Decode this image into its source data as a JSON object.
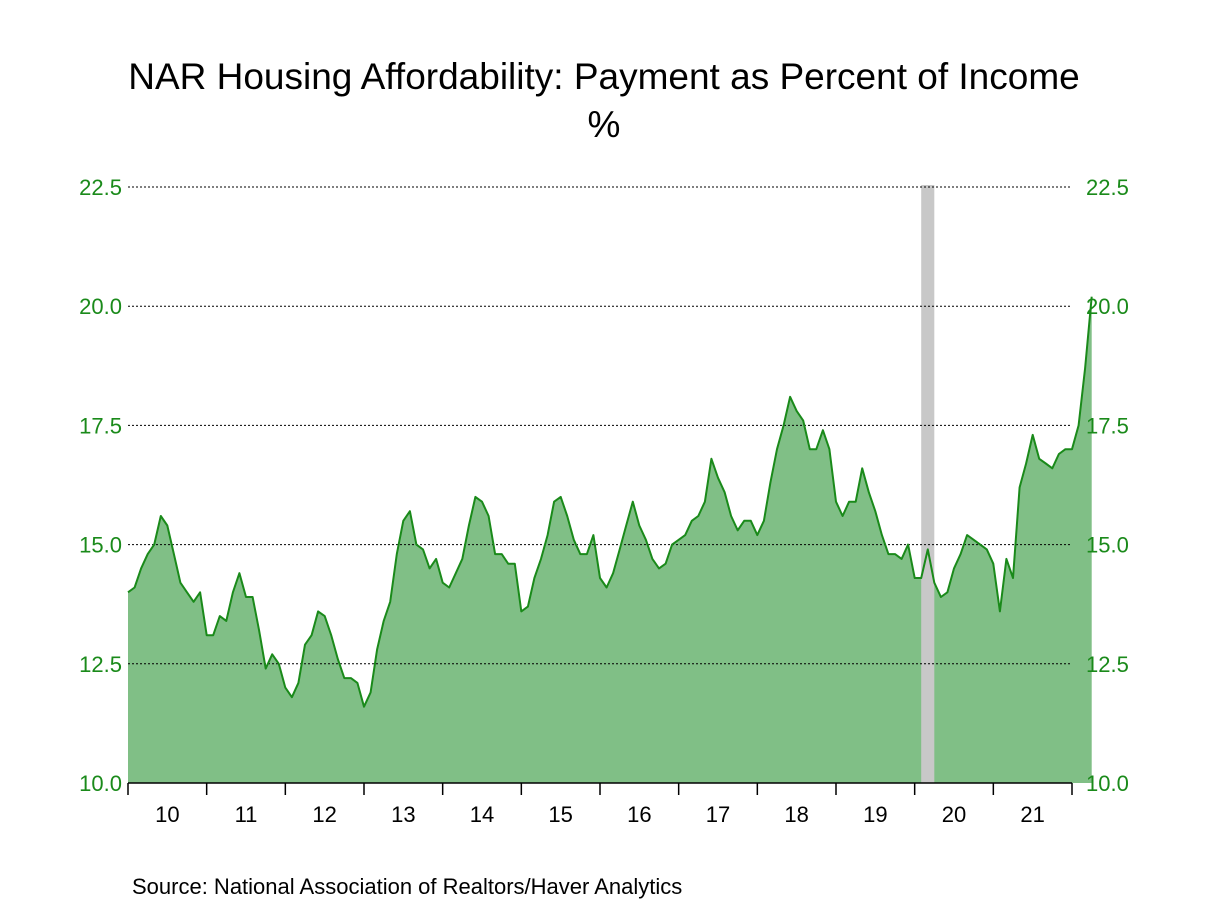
{
  "chart_data": {
    "type": "area",
    "title": "NAR Housing Affordability: Payment as Percent of Income",
    "subtitle": "%",
    "source": "Source:  National Association of Realtors/Haver Analytics",
    "ylim": [
      10.0,
      22.5
    ],
    "yticks": [
      "10.0",
      "12.5",
      "15.0",
      "17.5",
      "20.0",
      "22.5"
    ],
    "x_tick_labels": [
      "10",
      "11",
      "12",
      "13",
      "14",
      "15",
      "16",
      "17",
      "18",
      "19",
      "20",
      "21"
    ],
    "x_start_year": 2010,
    "x_end_year": 2022,
    "grid": "horizontal dotted",
    "axes": "left and right",
    "colors": {
      "fill": "#80bf86",
      "line": "#1a8a1a",
      "axis_text": "#1a8a1a",
      "recession": "#c8c8c8"
    },
    "recession_shading": [
      {
        "start": "2020-02",
        "end": "2020-04"
      }
    ],
    "series": [
      {
        "dates": [
          "2010-01",
          "2010-02",
          "2010-03",
          "2010-04",
          "2010-05",
          "2010-06",
          "2010-07",
          "2010-08",
          "2010-09",
          "2010-10",
          "2010-11",
          "2010-12",
          "2011-01",
          "2011-02",
          "2011-03",
          "2011-04",
          "2011-05",
          "2011-06",
          "2011-07",
          "2011-08",
          "2011-09",
          "2011-10",
          "2011-11",
          "2011-12",
          "2012-01",
          "2012-02",
          "2012-03",
          "2012-04",
          "2012-05",
          "2012-06",
          "2012-07",
          "2012-08",
          "2012-09",
          "2012-10",
          "2012-11",
          "2012-12",
          "2013-01",
          "2013-02",
          "2013-03",
          "2013-04",
          "2013-05",
          "2013-06",
          "2013-07",
          "2013-08",
          "2013-09",
          "2013-10",
          "2013-11",
          "2013-12",
          "2014-01",
          "2014-02",
          "2014-03",
          "2014-04",
          "2014-05",
          "2014-06",
          "2014-07",
          "2014-08",
          "2014-09",
          "2014-10",
          "2014-11",
          "2014-12",
          "2015-01",
          "2015-02",
          "2015-03",
          "2015-04",
          "2015-05",
          "2015-06",
          "2015-07",
          "2015-08",
          "2015-09",
          "2015-10",
          "2015-11",
          "2015-12",
          "2016-01",
          "2016-02",
          "2016-03",
          "2016-04",
          "2016-05",
          "2016-06",
          "2016-07",
          "2016-08",
          "2016-09",
          "2016-10",
          "2016-11",
          "2016-12",
          "2017-01",
          "2017-02",
          "2017-03",
          "2017-04",
          "2017-05",
          "2017-06",
          "2017-07",
          "2017-08",
          "2017-09",
          "2017-10",
          "2017-11",
          "2017-12",
          "2018-01",
          "2018-02",
          "2018-03",
          "2018-04",
          "2018-05",
          "2018-06",
          "2018-07",
          "2018-08",
          "2018-09",
          "2018-10",
          "2018-11",
          "2018-12",
          "2019-01",
          "2019-02",
          "2019-03",
          "2019-04",
          "2019-05",
          "2019-06",
          "2019-07",
          "2019-08",
          "2019-09",
          "2019-10",
          "2019-11",
          "2019-12",
          "2020-01",
          "2020-02",
          "2020-03",
          "2020-04",
          "2020-05",
          "2020-06",
          "2020-07",
          "2020-08",
          "2020-09",
          "2020-10",
          "2020-11",
          "2020-12",
          "2021-01",
          "2021-02",
          "2021-03",
          "2021-04",
          "2021-05",
          "2021-06",
          "2021-07",
          "2021-08",
          "2021-09",
          "2021-10",
          "2021-11",
          "2021-12",
          "2022-01",
          "2022-02",
          "2022-03",
          "2022-04"
        ],
        "values": [
          14.0,
          14.1,
          14.5,
          14.8,
          15.0,
          15.6,
          15.4,
          14.8,
          14.2,
          14.0,
          13.8,
          14.0,
          13.1,
          13.1,
          13.5,
          13.4,
          14.0,
          14.4,
          13.9,
          13.9,
          13.2,
          12.4,
          12.7,
          12.5,
          12.0,
          11.8,
          12.1,
          12.9,
          13.1,
          13.6,
          13.5,
          13.1,
          12.6,
          12.2,
          12.2,
          12.1,
          11.6,
          11.9,
          12.8,
          13.4,
          13.8,
          14.8,
          15.5,
          15.7,
          15.0,
          14.9,
          14.5,
          14.7,
          14.2,
          14.1,
          14.4,
          14.7,
          15.4,
          16.0,
          15.9,
          15.6,
          14.8,
          14.8,
          14.6,
          14.6,
          13.6,
          13.7,
          14.3,
          14.7,
          15.2,
          15.9,
          16.0,
          15.6,
          15.1,
          14.8,
          14.8,
          15.2,
          14.3,
          14.1,
          14.4,
          14.9,
          15.4,
          15.9,
          15.4,
          15.1,
          14.7,
          14.5,
          14.6,
          15.0,
          15.1,
          15.2,
          15.5,
          15.6,
          15.9,
          16.8,
          16.4,
          16.1,
          15.6,
          15.3,
          15.5,
          15.5,
          15.2,
          15.5,
          16.3,
          17.0,
          17.5,
          18.1,
          17.8,
          17.6,
          17.0,
          17.0,
          17.4,
          17.0,
          15.9,
          15.6,
          15.9,
          15.9,
          16.6,
          16.1,
          15.7,
          15.2,
          14.8,
          14.8,
          14.7,
          15.0,
          14.3,
          14.3,
          14.9,
          14.2,
          13.9,
          14.0,
          14.5,
          14.8,
          15.2,
          15.1,
          15.0,
          14.9,
          14.6,
          13.6,
          14.7,
          14.3,
          16.2,
          16.7,
          17.3,
          16.8,
          16.7,
          16.6,
          16.9,
          17.0,
          17.0,
          17.5,
          18.7,
          20.2
        ]
      }
    ]
  }
}
